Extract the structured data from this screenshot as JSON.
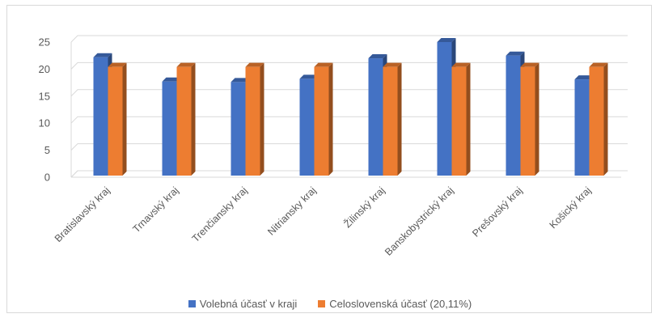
{
  "chart_data": {
    "type": "bar",
    "title": "",
    "xlabel": "",
    "ylabel": "",
    "ylim": [
      0,
      25
    ],
    "yticks": [
      0,
      5,
      10,
      15,
      20,
      25
    ],
    "grid": true,
    "legend_position": "bottom",
    "categories": [
      "Bratislavský kraj",
      "Trnavský kraj",
      "Trenčiansky kraj",
      "Nitriansky kraj",
      "Žilinský kraj",
      "Banskobystrický kraj",
      "Prešovský kraj",
      "Košický kraj"
    ],
    "series": [
      {
        "name": "Volebná účasť v kraji",
        "color": "#4472c4",
        "values": [
          21.9,
          17.4,
          17.3,
          17.9,
          21.7,
          24.7,
          22.2,
          17.8
        ]
      },
      {
        "name": "Celoslovenská účasť (20,11%)",
        "color": "#ed7d31",
        "values": [
          20.11,
          20.11,
          20.11,
          20.11,
          20.11,
          20.11,
          20.11,
          20.11
        ]
      }
    ]
  }
}
